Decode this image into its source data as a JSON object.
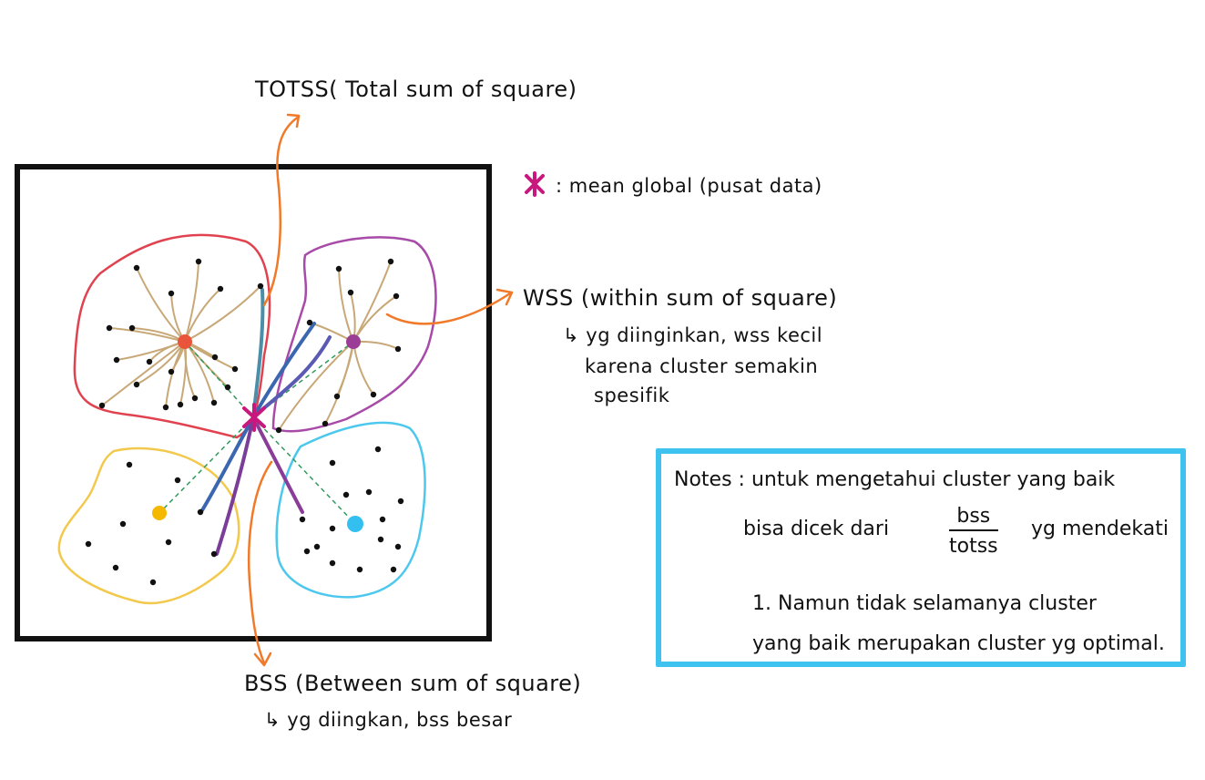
{
  "labels": {
    "totss": "TOTSS( Total sum of square)",
    "legend_mean": ": mean global (pusat data)",
    "wss": "WSS (within sum of square)",
    "wss_note_1": "↳ yg diinginkan, wss kecil",
    "wss_note_2": "karena cluster semakin",
    "wss_note_3": "spesifik",
    "bss": "BSS (Between sum of square)",
    "bss_note": "↳ yg diingkan, bss besar"
  },
  "notes": {
    "line1": "Notes : untuk mengetahui cluster yang baik",
    "line2_left": "bisa dicek dari",
    "frac_num": "bss",
    "frac_den": "totss",
    "line2_right": "yg mendekati",
    "line3": "1. Namun tidak selamanya cluster",
    "line4": "yang baik merupakan cluster yg optimal."
  },
  "colors": {
    "frame": "#111111",
    "cluster_red": "#e0434f",
    "cluster_purple": "#a74aa8",
    "cluster_yellow": "#f2c94c",
    "cluster_blue": "#4cc8ee",
    "centroid_red": "#e8553a",
    "centroid_purple": "#9b3d97",
    "centroid_yellow": "#f5b800",
    "centroid_blue": "#33c0f0",
    "spoke": "#c8a877",
    "dashed": "#2e9a5a",
    "arrow": "#f07a2a",
    "mean_star": "#c8187e",
    "notes_border": "#3ec3f0"
  }
}
